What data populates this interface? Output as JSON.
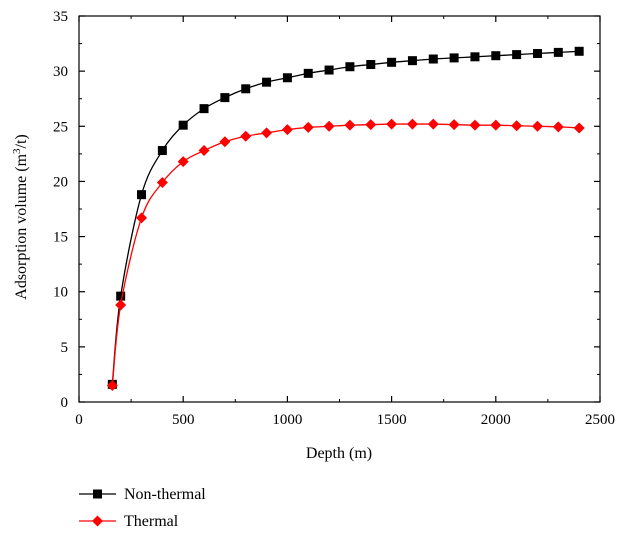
{
  "chart_data": {
    "type": "line",
    "xlabel": "Depth (m)",
    "ylabel": {
      "text": "Adsorption volume (m",
      "superscript": "3",
      "suffix": "/t)"
    },
    "xlim": [
      0,
      2500
    ],
    "ylim": [
      0,
      35
    ],
    "xticks": [
      "0",
      "500",
      "1000",
      "1500",
      "2000",
      "2500"
    ],
    "yticks": [
      "0",
      "5",
      "10",
      "15",
      "20",
      "25",
      "30",
      "35"
    ],
    "grid": false,
    "legend_position": "bottom-left, below plot",
    "series": [
      {
        "name": "Non-thermal",
        "color": "#000000",
        "marker": "square",
        "x": [
          160,
          200,
          300,
          400,
          500,
          600,
          700,
          800,
          900,
          1000,
          1100,
          1200,
          1300,
          1400,
          1500,
          1600,
          1700,
          1800,
          1900,
          2000,
          2100,
          2200,
          2300,
          2400
        ],
        "y": [
          1.6,
          9.6,
          18.8,
          22.8,
          25.1,
          26.6,
          27.6,
          28.4,
          29.0,
          29.4,
          29.8,
          30.1,
          30.4,
          30.6,
          30.8,
          30.95,
          31.1,
          31.2,
          31.3,
          31.4,
          31.5,
          31.6,
          31.7,
          31.8
        ]
      },
      {
        "name": "Thermal",
        "color": "#ff0000",
        "marker": "diamond",
        "x": [
          160,
          200,
          300,
          400,
          500,
          600,
          700,
          800,
          900,
          1000,
          1100,
          1200,
          1300,
          1400,
          1500,
          1600,
          1700,
          1800,
          1900,
          2000,
          2100,
          2200,
          2300,
          2400
        ],
        "y": [
          1.5,
          8.8,
          16.7,
          19.9,
          21.8,
          22.8,
          23.6,
          24.1,
          24.4,
          24.7,
          24.9,
          25.0,
          25.1,
          25.15,
          25.2,
          25.2,
          25.2,
          25.15,
          25.1,
          25.1,
          25.05,
          25.0,
          24.95,
          24.85
        ]
      }
    ]
  }
}
